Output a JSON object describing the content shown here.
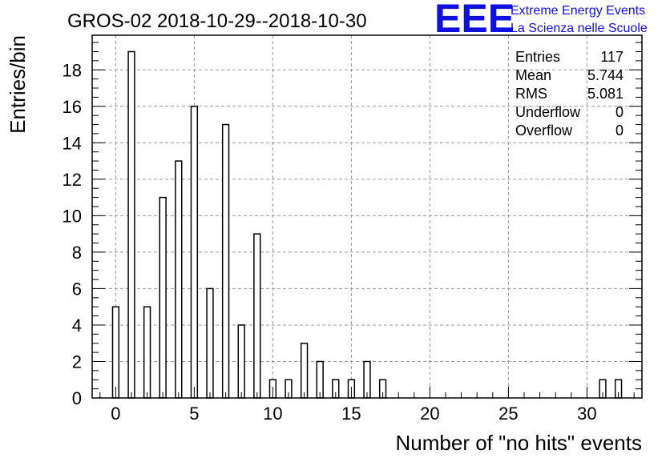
{
  "chart_data": {
    "type": "bar",
    "title": "GROS-02 2018-10-29--2018-10-30",
    "xlabel": "Number of \"no hits\" events",
    "ylabel": "Entries/bin",
    "xlim": [
      -1.5,
      33.5
    ],
    "ylim": [
      0,
      19.9
    ],
    "x_ticks": [
      0,
      5,
      10,
      15,
      20,
      25,
      30
    ],
    "y_ticks": [
      0,
      2,
      4,
      6,
      8,
      10,
      12,
      14,
      16,
      18
    ],
    "grid": true,
    "bar_width": 0.4,
    "bars": [
      {
        "x": 0,
        "value": 5
      },
      {
        "x": 1,
        "value": 19
      },
      {
        "x": 2,
        "value": 5
      },
      {
        "x": 3,
        "value": 11
      },
      {
        "x": 4,
        "value": 13
      },
      {
        "x": 5,
        "value": 16
      },
      {
        "x": 6,
        "value": 6
      },
      {
        "x": 7,
        "value": 15
      },
      {
        "x": 8,
        "value": 4
      },
      {
        "x": 9,
        "value": 9
      },
      {
        "x": 10,
        "value": 1
      },
      {
        "x": 11,
        "value": 1
      },
      {
        "x": 12,
        "value": 3
      },
      {
        "x": 13,
        "value": 2
      },
      {
        "x": 14,
        "value": 1
      },
      {
        "x": 15,
        "value": 1
      },
      {
        "x": 16,
        "value": 2
      },
      {
        "x": 17,
        "value": 1
      },
      {
        "x": 31,
        "value": 1
      },
      {
        "x": 32,
        "value": 1
      }
    ],
    "stats": [
      {
        "label": "Entries",
        "value": "117"
      },
      {
        "label": "Mean",
        "value": "5.744"
      },
      {
        "label": "RMS",
        "value": "5.081"
      },
      {
        "label": "Underflow",
        "value": "0"
      },
      {
        "label": "Overflow",
        "value": "0"
      }
    ]
  },
  "logo": {
    "text": "EEE",
    "line1": "Extreme Energy Events",
    "line2": "La Scienza nelle Scuole",
    "color": "#1010e0"
  }
}
